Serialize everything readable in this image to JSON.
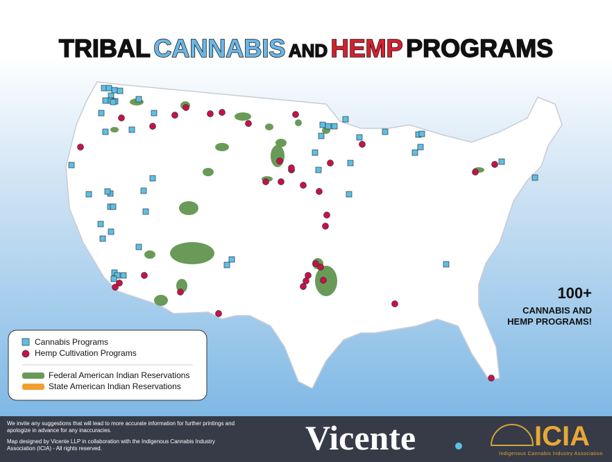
{
  "header": {
    "title": {
      "word1": "TRIBAL",
      "word2": "CANNABIS",
      "word3": "AND",
      "word4": "HEMP",
      "word5": "PROGRAMS"
    }
  },
  "callout": {
    "number": "100+",
    "line1": "CANNABIS AND",
    "line2": "HEMP PROGRAMS!"
  },
  "legend": {
    "items": [
      "Cannabis Programs",
      "Hemp Cultivation Programs",
      "Federal American Indian Reservations",
      "State American Indian Reservations"
    ]
  },
  "footer": {
    "note1": "We invite any suggestions that will lead to more accurate information for further printings and apologize in advance for any inaccuracies.",
    "note2": "Map designed by Vicente LLP in collaboration with the Indigenous Cannabis Industry Association (ICIA) - All rights reserved.",
    "logo1": "Vicente",
    "logo2": "ICIA",
    "logo2_sub": "Indigenous Cannabis Industry Association"
  }
}
